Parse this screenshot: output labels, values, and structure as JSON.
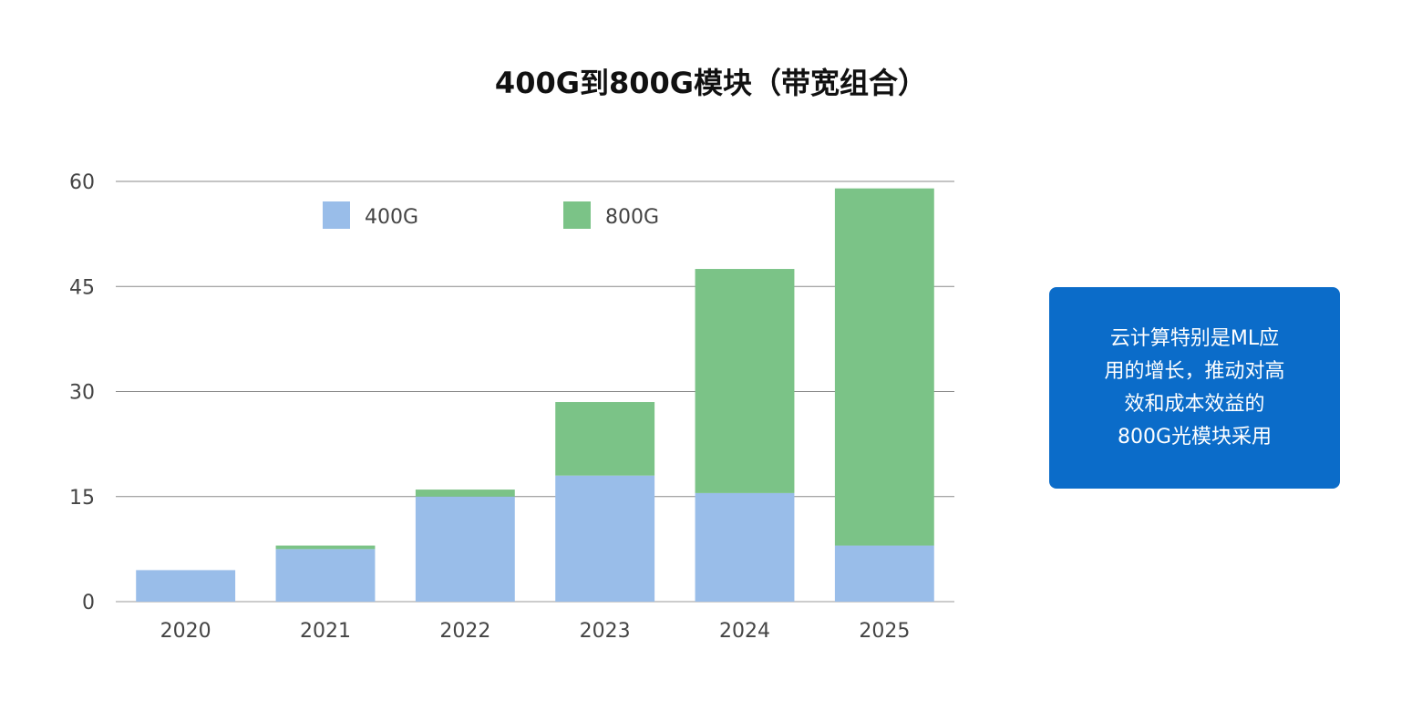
{
  "chart_data": {
    "type": "bar",
    "stacked": true,
    "title": "400G到800G模块（带宽组合）",
    "categories": [
      "2020",
      "2021",
      "2022",
      "2023",
      "2024",
      "2025"
    ],
    "series": [
      {
        "name": "400G",
        "color": "#99bde9",
        "values": [
          4.5,
          7.5,
          15,
          18,
          15.5,
          8
        ]
      },
      {
        "name": "800G",
        "color": "#7bc387",
        "values": [
          0,
          0.5,
          1,
          10.5,
          32,
          51
        ]
      }
    ],
    "ylim": [
      0,
      60
    ],
    "yticks": [
      0,
      15,
      30,
      45,
      60
    ],
    "grid": true,
    "legend": "top"
  },
  "callout": {
    "text": "云计算特别是ML应\n用的增长，推动对高\n效和成本效益的\n800G光模块采用",
    "color": "#0b6cc9"
  }
}
